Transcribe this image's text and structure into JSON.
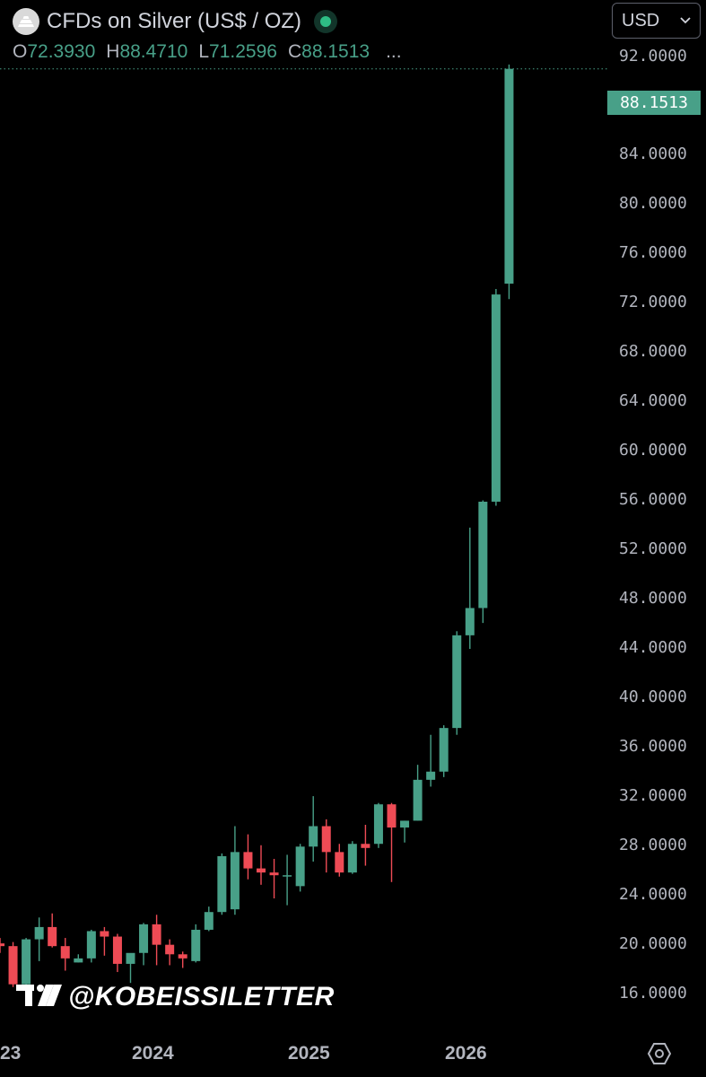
{
  "header": {
    "title": "CFDs on Silver (US$ / OZ)",
    "ohlc": {
      "open_label": "O",
      "open": "72.3930",
      "high_label": "H",
      "high": "88.4710",
      "low_label": "L",
      "low": "71.2596",
      "close_label": "C",
      "close": "88.1513",
      "more": "..."
    }
  },
  "currency_select": {
    "value": "USD"
  },
  "price_axis": {
    "labels": [
      "92.0000",
      "88.1513",
      "84.0000",
      "80.0000",
      "76.0000",
      "72.0000",
      "68.0000",
      "64.0000",
      "60.0000",
      "56.0000",
      "52.0000",
      "48.0000",
      "44.0000",
      "40.0000",
      "36.0000",
      "32.0000",
      "28.0000",
      "24.0000",
      "20.0000",
      "16.0000"
    ],
    "last_price": "88.1513"
  },
  "time_axis": {
    "labels": [
      "23",
      "2024",
      "2025",
      "2026"
    ]
  },
  "watermark": {
    "handle": "@KOBEISSILETTER"
  },
  "colors": {
    "up": "#48a088",
    "down": "#ee4b55",
    "background": "#000000",
    "axis_text": "#b2b5be"
  },
  "chart_data": {
    "type": "candlestick",
    "title": "CFDs on Silver (US$ / OZ)",
    "interval": "1M",
    "ylim": [
      14.2,
      93.2
    ],
    "y_ticks": [
      92,
      84,
      80,
      76,
      72,
      68,
      64,
      60,
      56,
      52,
      48,
      44,
      40,
      36,
      32,
      28,
      24,
      20,
      16
    ],
    "last_price": 88.1513,
    "candles": [
      {
        "t": "2023-04",
        "o": 24.0,
        "h": 24.4,
        "l": 23.3,
        "c": 23.8
      },
      {
        "t": "2023-05",
        "o": 23.8,
        "h": 24.1,
        "l": 20.8,
        "c": 21.0
      },
      {
        "t": "2023-06",
        "o": 21.0,
        "h": 24.4,
        "l": 20.2,
        "c": 24.3
      },
      {
        "t": "2023-07",
        "o": 24.3,
        "h": 25.9,
        "l": 22.7,
        "c": 25.2
      },
      {
        "t": "2023-08",
        "o": 25.2,
        "h": 26.2,
        "l": 23.7,
        "c": 23.8
      },
      {
        "t": "2023-09",
        "o": 23.8,
        "h": 24.4,
        "l": 22.0,
        "c": 22.9
      },
      {
        "t": "2023-10",
        "o": 22.6,
        "h": 23.2,
        "l": 22.6,
        "c": 22.9
      },
      {
        "t": "2023-11",
        "o": 22.9,
        "h": 25.0,
        "l": 22.6,
        "c": 24.9
      },
      {
        "t": "2023-12",
        "o": 24.9,
        "h": 25.2,
        "l": 23.1,
        "c": 24.5
      },
      {
        "t": "2024-01",
        "o": 24.5,
        "h": 24.7,
        "l": 21.9,
        "c": 22.5
      },
      {
        "t": "2024-02",
        "o": 22.5,
        "h": 23.1,
        "l": 21.1,
        "c": 23.3
      },
      {
        "t": "2024-03",
        "o": 23.3,
        "h": 25.5,
        "l": 22.4,
        "c": 25.4
      },
      {
        "t": "2024-04",
        "o": 25.4,
        "h": 26.1,
        "l": 22.4,
        "c": 23.9
      },
      {
        "t": "2024-05",
        "o": 23.9,
        "h": 24.3,
        "l": 22.4,
        "c": 23.2
      },
      {
        "t": "2024-06",
        "o": 23.2,
        "h": 23.4,
        "l": 22.2,
        "c": 22.9
      },
      {
        "t": "2024-07",
        "o": 22.7,
        "h": 25.4,
        "l": 22.6,
        "c": 25.0
      },
      {
        "t": "2024-08",
        "o": 25.0,
        "h": 26.7,
        "l": 24.9,
        "c": 26.3
      },
      {
        "t": "2024-09",
        "o": 26.3,
        "h": 30.6,
        "l": 26.1,
        "c": 30.4
      },
      {
        "t": "2024-10",
        "o": 26.5,
        "h": 32.6,
        "l": 26.1,
        "c": 30.7
      },
      {
        "t": "2024-11",
        "o": 30.7,
        "h": 32.0,
        "l": 28.7,
        "c": 29.5
      },
      {
        "t": "2024-12",
        "o": 29.5,
        "h": 31.2,
        "l": 28.3,
        "c": 29.2
      },
      {
        "t": "2025-01",
        "o": 29.2,
        "h": 30.2,
        "l": 27.3,
        "c": 29.0
      },
      {
        "t": "2025-02",
        "o": 29.0,
        "h": 30.5,
        "l": 26.8,
        "c": 29.0
      },
      {
        "t": "2025-03",
        "o": 28.2,
        "h": 31.3,
        "l": 27.8,
        "c": 31.1
      },
      {
        "t": "2025-04",
        "o": 31.1,
        "h": 34.8,
        "l": 30.0,
        "c": 32.6
      },
      {
        "t": "2025-05",
        "o": 32.6,
        "h": 33.1,
        "l": 29.2,
        "c": 30.7
      },
      {
        "t": "2025-06",
        "o": 30.7,
        "h": 31.3,
        "l": 28.9,
        "c": 29.2
      },
      {
        "t": "2025-07",
        "o": 29.2,
        "h": 31.5,
        "l": 29.1,
        "c": 31.3
      },
      {
        "t": "2025-08",
        "o": 31.3,
        "h": 32.7,
        "l": 29.7,
        "c": 31.0
      },
      {
        "t": "2025-09",
        "o": 31.3,
        "h": 34.3,
        "l": 31.0,
        "c": 34.2
      },
      {
        "t": "2025-10",
        "o": 34.2,
        "h": 34.3,
        "l": 28.5,
        "c": 32.5
      },
      {
        "t": "2025-11",
        "o": 32.5,
        "h": 33.0,
        "l": 31.4,
        "c": 33.0
      },
      {
        "t": "2025-12",
        "o": 33.0,
        "h": 37.1,
        "l": 33.0,
        "c": 36.0
      },
      {
        "t": "2026-01",
        "o": 36.0,
        "h": 39.3,
        "l": 35.5,
        "c": 36.6
      },
      {
        "t": "2026-02",
        "o": 36.6,
        "h": 40.0,
        "l": 36.2,
        "c": 39.8
      },
      {
        "t": "2026-03",
        "o": 39.8,
        "h": 46.9,
        "l": 39.3,
        "c": 46.6
      },
      {
        "t": "2026-04",
        "o": 46.6,
        "h": 54.5,
        "l": 45.6,
        "c": 48.6
      },
      {
        "t": "2026-05",
        "o": 48.6,
        "h": 56.5,
        "l": 47.5,
        "c": 56.4
      },
      {
        "t": "2026-06",
        "o": 56.4,
        "h": 72.0,
        "l": 56.1,
        "c": 71.6
      },
      {
        "t": "2026-07",
        "o": 72.393,
        "h": 88.471,
        "l": 71.2596,
        "c": 88.1513
      }
    ]
  }
}
